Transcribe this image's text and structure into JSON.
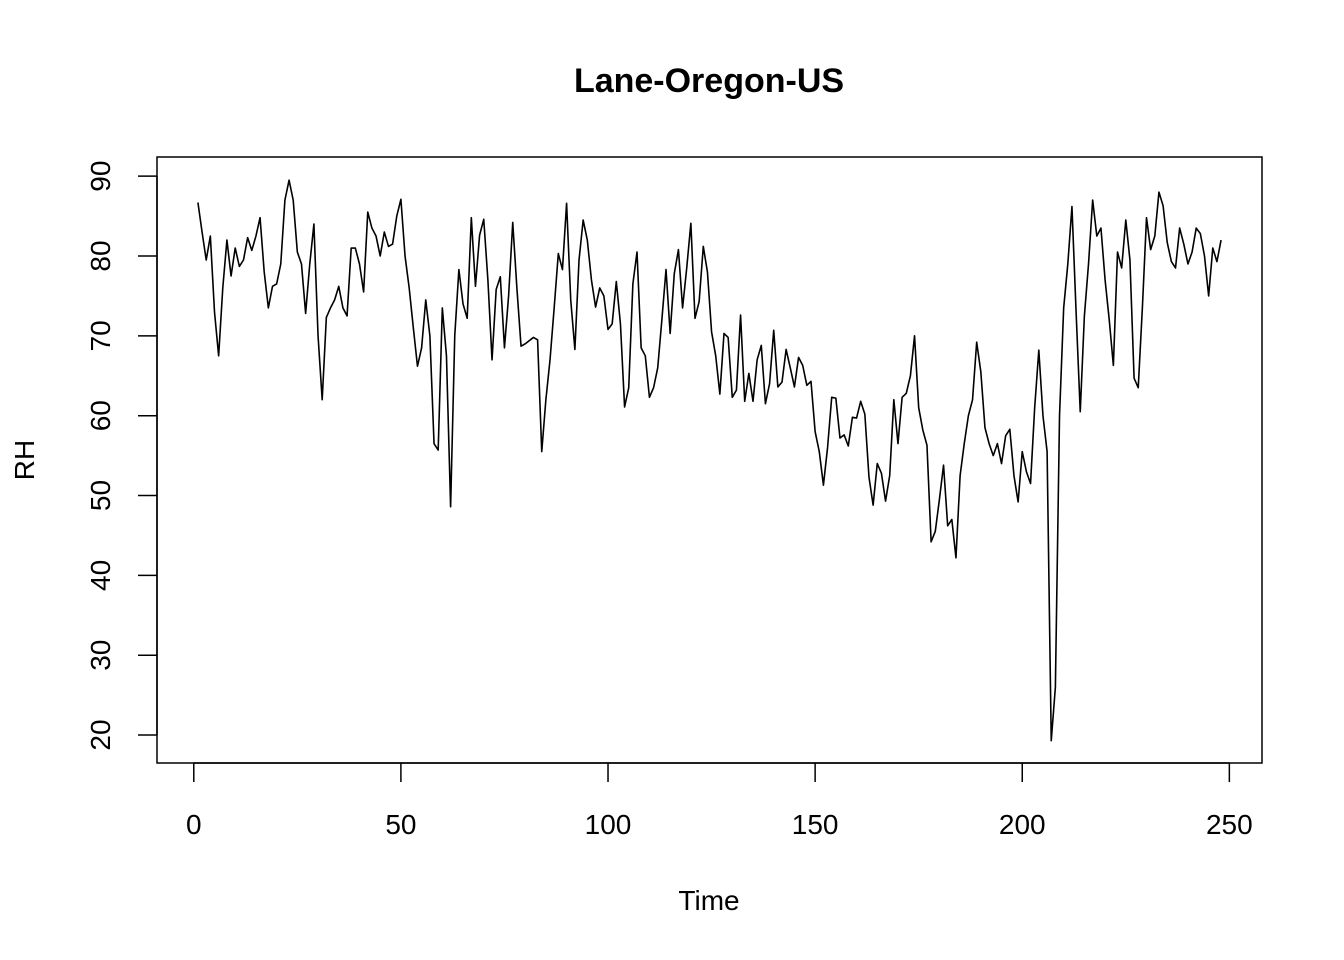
{
  "chart_data": {
    "type": "line",
    "title": "Lane-Oregon-US",
    "xlabel": "Time",
    "ylabel": "RH",
    "color": "#000000",
    "x": [
      1,
      2,
      3,
      4,
      5,
      6,
      7,
      8,
      9,
      10,
      11,
      12,
      13,
      14,
      15,
      16,
      17,
      18,
      19,
      20,
      21,
      22,
      23,
      24,
      25,
      26,
      27,
      28,
      29,
      30,
      31,
      32,
      33,
      34,
      35,
      36,
      37,
      38,
      39,
      40,
      41,
      42,
      43,
      44,
      45,
      46,
      47,
      48,
      49,
      50,
      51,
      52,
      53,
      54,
      55,
      56,
      57,
      58,
      59,
      60,
      61,
      62,
      63,
      64,
      65,
      66,
      67,
      68,
      69,
      70,
      71,
      72,
      73,
      74,
      75,
      76,
      77,
      78,
      79,
      80,
      81,
      82,
      83,
      84,
      85,
      86,
      87,
      88,
      89,
      90,
      91,
      92,
      93,
      94,
      95,
      96,
      97,
      98,
      99,
      100,
      101,
      102,
      103,
      104,
      105,
      106,
      107,
      108,
      109,
      110,
      111,
      112,
      113,
      114,
      115,
      116,
      117,
      118,
      119,
      120,
      121,
      122,
      123,
      124,
      125,
      126,
      127,
      128,
      129,
      130,
      131,
      132,
      133,
      134,
      135,
      136,
      137,
      138,
      139,
      140,
      141,
      142,
      143,
      144,
      145,
      146,
      147,
      148,
      149,
      150,
      151,
      152,
      153,
      154,
      155,
      156,
      157,
      158,
      159,
      160,
      161,
      162,
      163,
      164,
      165,
      166,
      167,
      168,
      169,
      170,
      171,
      172,
      173,
      174,
      175,
      176,
      177,
      178,
      179,
      180,
      181,
      182,
      183,
      184,
      185,
      186,
      187,
      188,
      189,
      190,
      191,
      192,
      193,
      194,
      195,
      196,
      197,
      198,
      199,
      200,
      201,
      202,
      203,
      204,
      205,
      206,
      207,
      208,
      209,
      210,
      211,
      212,
      213,
      214,
      215,
      216,
      217,
      218,
      219,
      220,
      221,
      222,
      223,
      224,
      225,
      226,
      227,
      228,
      229,
      230,
      231,
      232,
      233,
      234,
      235,
      236,
      237,
      238,
      239,
      240,
      241,
      242,
      243,
      244,
      245,
      246,
      247,
      248
    ],
    "values": [
      86.7,
      83,
      79.5,
      82.5,
      73,
      67.5,
      76,
      82,
      77.5,
      81,
      78.7,
      79.5,
      82.3,
      80.7,
      82.5,
      84.8,
      78,
      73.5,
      76.2,
      76.5,
      79,
      87,
      89.5,
      87,
      80.5,
      79,
      72.8,
      79,
      84,
      70,
      62,
      72.3,
      73.5,
      74.5,
      76.2,
      73.5,
      72.5,
      81,
      81,
      79,
      75.5,
      85.5,
      83.5,
      82.5,
      80,
      83,
      81.2,
      81.5,
      85,
      87.1,
      80,
      76,
      71,
      66.2,
      68.5,
      74.5,
      70,
      56.5,
      55.7,
      73.5,
      67.5,
      48.6,
      70,
      78.3,
      74,
      72.2,
      84.8,
      76.2,
      82.6,
      84.6,
      77,
      67,
      75.8,
      77.4,
      68.5,
      75,
      84.2,
      76,
      68.7,
      69,
      69.4,
      69.8,
      69.5,
      55.5,
      62,
      67,
      73.5,
      80.3,
      78.3,
      86.6,
      74.5,
      68.3,
      79.5,
      84.5,
      82,
      77,
      73.6,
      76,
      75,
      70.8,
      71.5,
      76.8,
      71.5,
      61.1,
      63.5,
      76.5,
      80.5,
      68.5,
      67.5,
      62.3,
      63.5,
      66,
      72,
      78.3,
      70.3,
      77.8,
      80.8,
      73.5,
      78.5,
      84.1,
      72.2,
      74.3,
      81.2,
      78,
      70.5,
      67.5,
      62.7,
      70.3,
      69.8,
      62.3,
      63.2,
      72.6,
      61.8,
      65.3,
      61.8,
      67,
      68.8,
      61.5,
      64,
      70.7,
      63.6,
      64.2,
      68.3,
      66,
      63.6,
      67.3,
      66.3,
      63.8,
      64.3,
      58,
      55.5,
      51.3,
      56,
      62.3,
      62.2,
      57.2,
      57.6,
      56.2,
      59.8,
      59.7,
      61.8,
      60.2,
      52.3,
      48.8,
      54,
      52.8,
      49.3,
      52.5,
      62,
      56.5,
      62.3,
      62.8,
      65,
      70,
      61,
      58.2,
      56.3,
      44.2,
      45.5,
      49.5,
      53.8,
      46.2,
      47,
      42.2,
      52.5,
      56.5,
      60,
      62,
      69.2,
      65.5,
      58.5,
      56.5,
      55,
      56.5,
      54,
      57.5,
      58.3,
      52.5,
      49.2,
      55.5,
      53,
      51.5,
      61,
      68.2,
      60,
      55.5,
      19.3,
      26,
      60,
      73.5,
      79,
      86.2,
      73,
      60.5,
      72.5,
      79,
      87,
      82.5,
      83.5,
      77,
      72,
      66.3,
      80.5,
      78.5,
      84.5,
      79.5,
      64.7,
      63.5,
      73.5,
      84.8,
      80.8,
      82.5,
      88,
      86.3,
      81.7,
      79.3,
      78.5,
      83.5,
      81.5,
      79,
      80.5,
      83.5,
      82.8,
      80,
      75,
      81,
      79.3,
      82
    ],
    "xlim": [
      -8.88,
      257.88
    ],
    "xticks": [
      0,
      50,
      100,
      150,
      200,
      250
    ],
    "ylim": [
      16.5,
      92.4
    ],
    "yticks": [
      20,
      30,
      40,
      50,
      60,
      70,
      80,
      90
    ]
  }
}
